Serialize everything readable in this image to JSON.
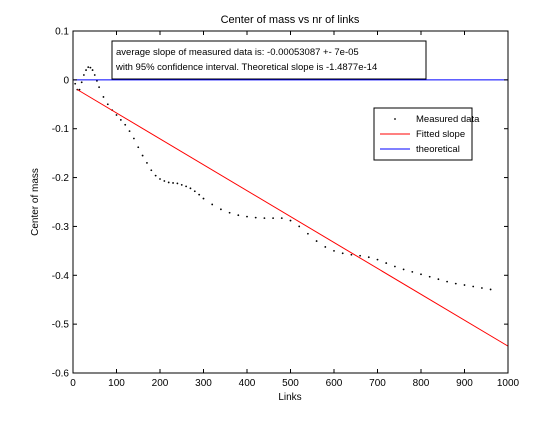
{
  "chart_data": {
    "type": "line",
    "title": "Center of mass vs nr of links",
    "xlabel": "Links",
    "ylabel": "Center of mass",
    "xlim": [
      0,
      1000
    ],
    "ylim": [
      -0.6,
      0.1
    ],
    "xticks": [
      "0",
      "100",
      "200",
      "300",
      "400",
      "500",
      "600",
      "700",
      "800",
      "900",
      "1000"
    ],
    "xtick_values": [
      0,
      100,
      200,
      300,
      400,
      500,
      600,
      700,
      800,
      900,
      1000
    ],
    "yticks": [
      "0.1",
      "0",
      "-0.1",
      "-0.2",
      "-0.3",
      "-0.4",
      "-0.5",
      "-0.6"
    ],
    "ytick_values": [
      0.1,
      0,
      -0.1,
      -0.2,
      -0.3,
      -0.4,
      -0.5,
      -0.6
    ],
    "grid": false,
    "legend_position": "top-right",
    "annotation": [
      "average slope of measured data is: -0.00053087 +- 7e-05",
      "with 95% confidence interval. Theoretical slope is -1.4877e-14"
    ],
    "series": [
      {
        "name": "Measured data",
        "style": "dotted",
        "color": "#000000",
        "x": [
          5,
          10,
          15,
          20,
          25,
          30,
          35,
          40,
          45,
          50,
          55,
          60,
          70,
          80,
          90,
          100,
          110,
          120,
          130,
          140,
          150,
          160,
          170,
          180,
          190,
          200,
          210,
          220,
          230,
          240,
          250,
          260,
          270,
          280,
          290,
          300,
          320,
          340,
          360,
          380,
          400,
          420,
          440,
          460,
          480,
          500,
          520,
          540,
          560,
          580,
          600,
          620,
          640,
          660,
          680,
          700,
          720,
          740,
          760,
          780,
          800,
          820,
          840,
          860,
          880,
          900,
          920,
          940,
          960
        ],
        "y": [
          -0.008,
          -0.02,
          -0.02,
          -0.005,
          0.01,
          0.02,
          0.026,
          0.025,
          0.02,
          0.01,
          -0.002,
          -0.015,
          -0.035,
          -0.05,
          -0.062,
          -0.072,
          -0.082,
          -0.092,
          -0.105,
          -0.12,
          -0.138,
          -0.155,
          -0.17,
          -0.185,
          -0.196,
          -0.203,
          -0.207,
          -0.21,
          -0.211,
          -0.212,
          -0.215,
          -0.218,
          -0.222,
          -0.228,
          -0.235,
          -0.243,
          -0.255,
          -0.265,
          -0.272,
          -0.277,
          -0.28,
          -0.282,
          -0.283,
          -0.283,
          -0.283,
          -0.288,
          -0.3,
          -0.315,
          -0.33,
          -0.342,
          -0.35,
          -0.355,
          -0.358,
          -0.36,
          -0.363,
          -0.368,
          -0.375,
          -0.382,
          -0.388,
          -0.393,
          -0.398,
          -0.403,
          -0.408,
          -0.413,
          -0.417,
          -0.42,
          -0.423,
          -0.426,
          -0.429
        ]
      },
      {
        "name": "Fitted slope",
        "style": "solid",
        "color": "#ff0000",
        "x": [
          10,
          1000
        ],
        "y": [
          -0.02,
          -0.545
        ]
      },
      {
        "name": "theoretical",
        "style": "solid",
        "color": "#0000ff",
        "x": [
          0,
          1000
        ],
        "y": [
          0,
          0
        ]
      }
    ]
  }
}
